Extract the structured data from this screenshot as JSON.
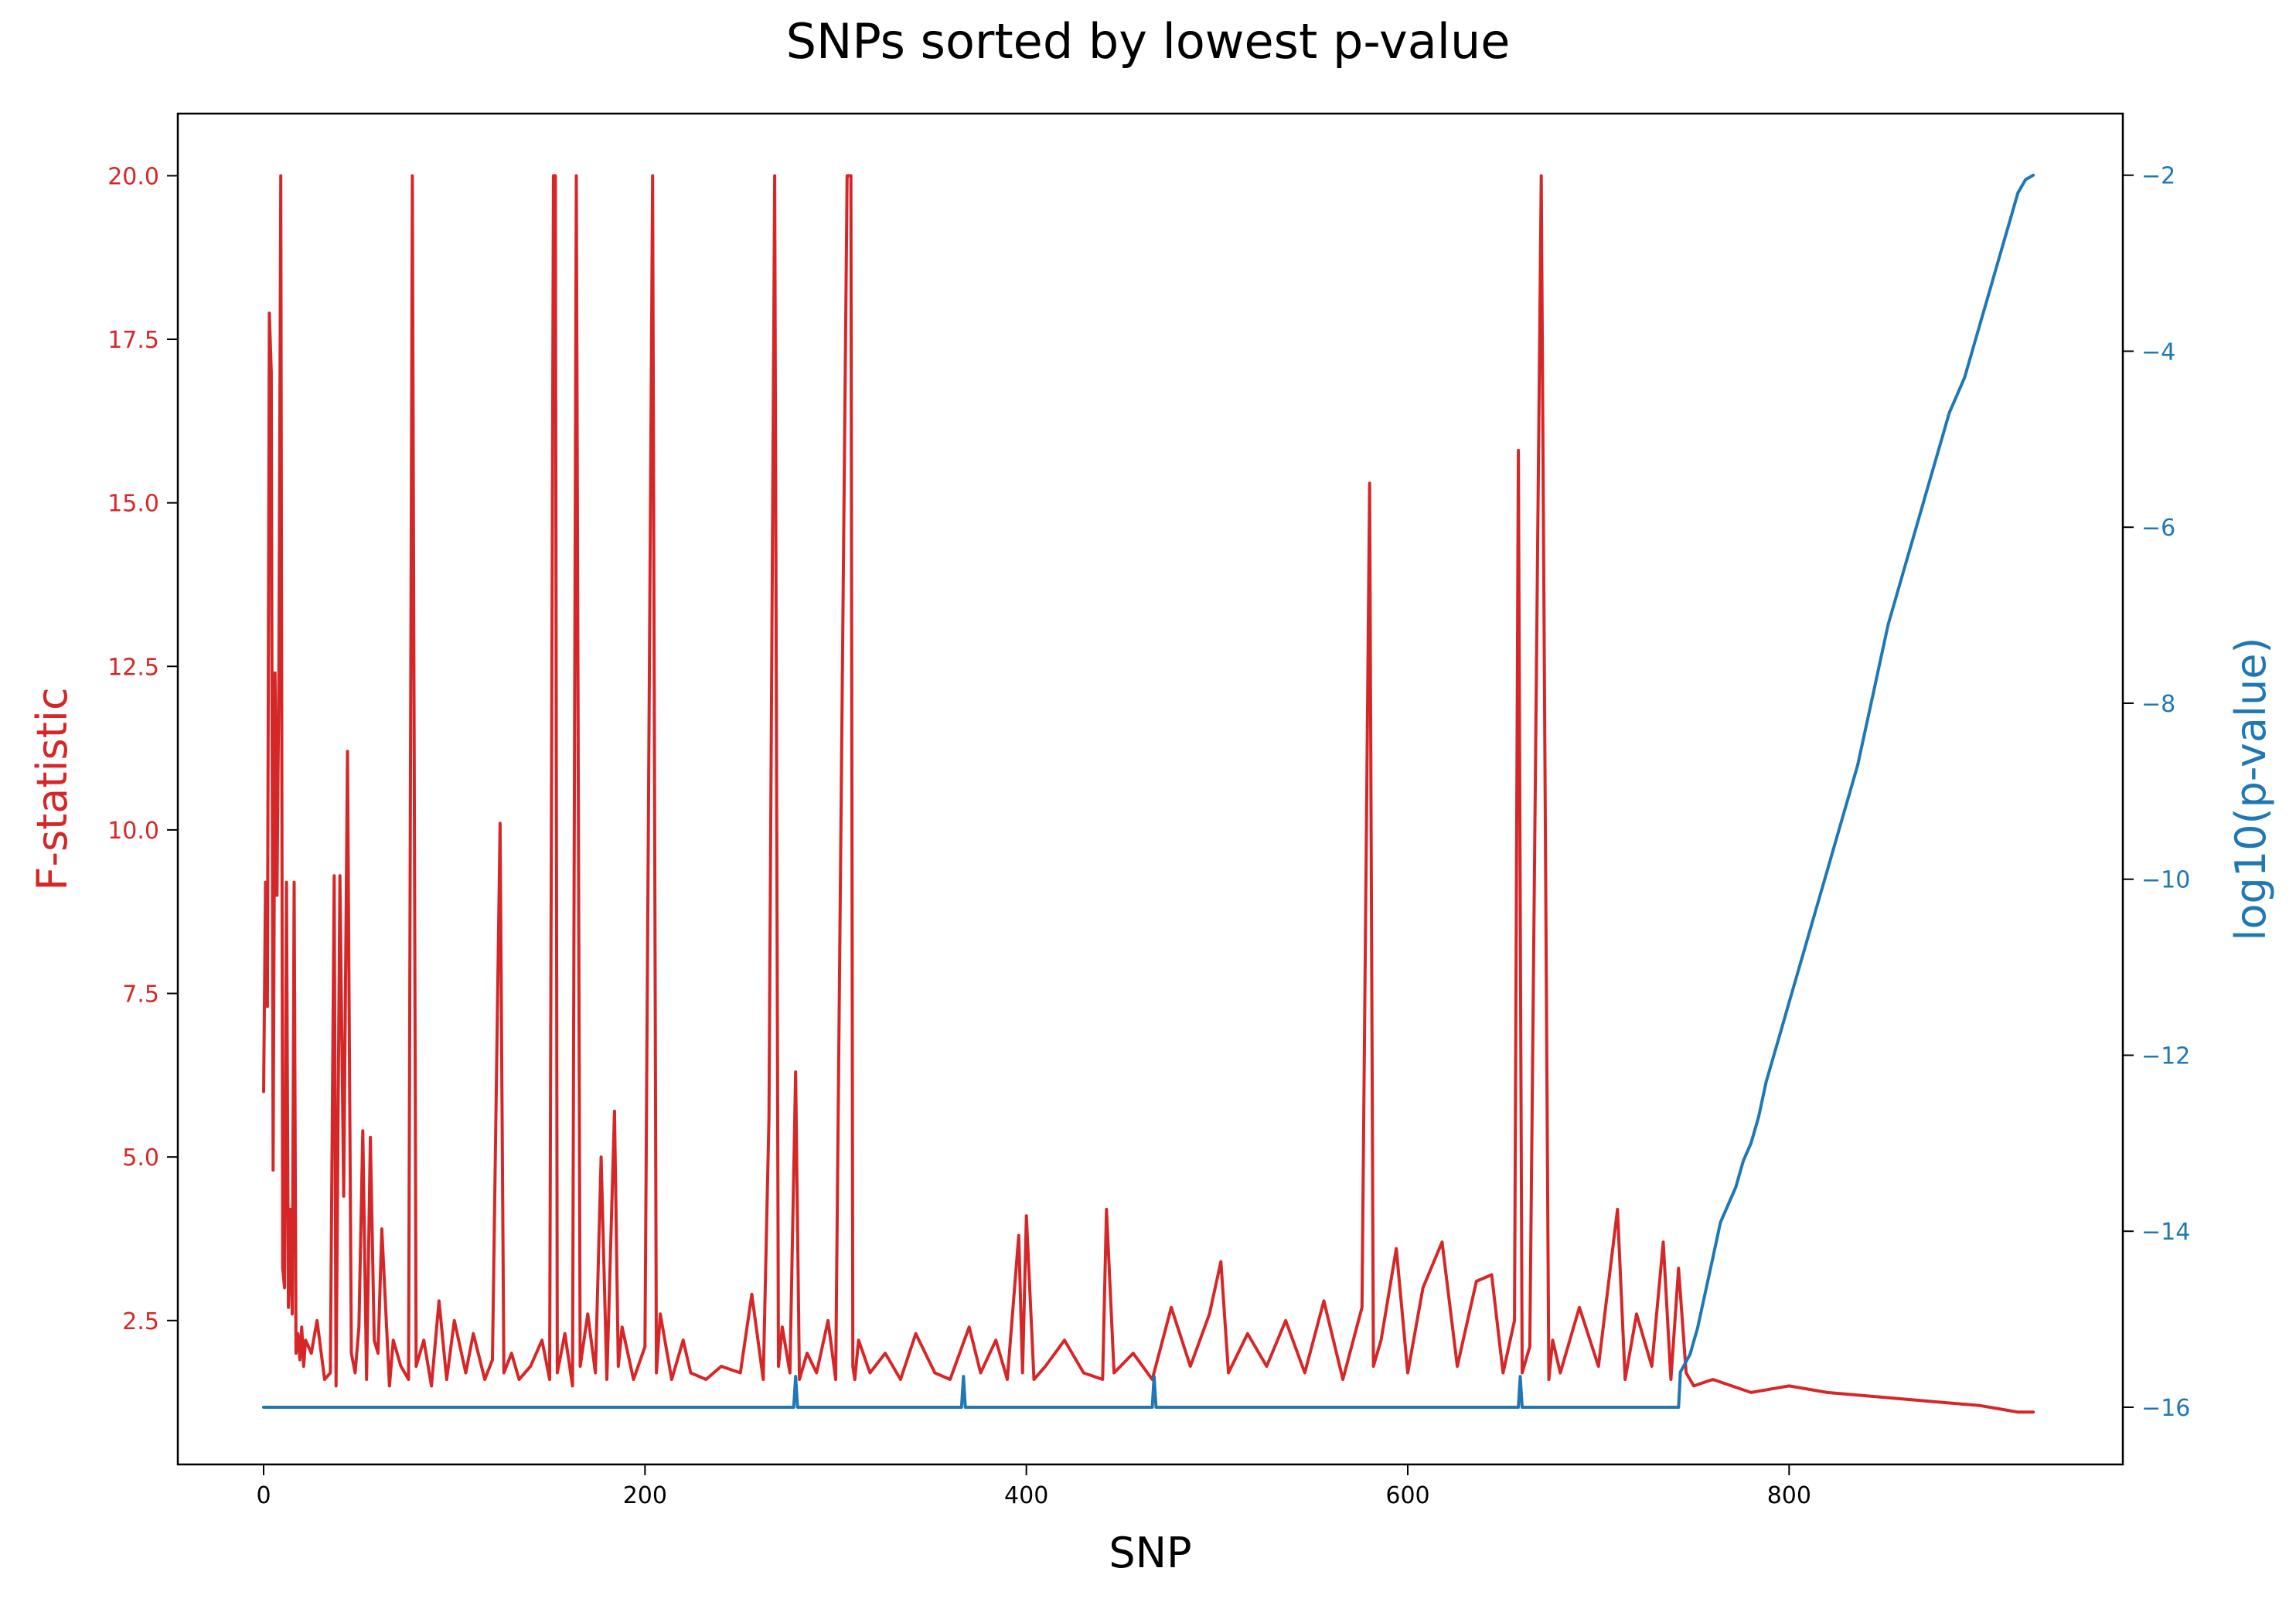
{
  "chart_data": {
    "type": "line",
    "title": "SNPs sorted by lowest p-value",
    "xlabel": "SNP",
    "ylabel_left": "F-statistic",
    "ylabel_right": "log10(p-value)",
    "xlim": [
      -45,
      975
    ],
    "ylim_left": [
      0.3,
      20.95
    ],
    "ylim_right": [
      -16.65,
      -1.3
    ],
    "xticks": [
      0,
      200,
      400,
      600,
      800
    ],
    "yticks_left": [
      2.5,
      5.0,
      7.5,
      10.0,
      12.5,
      15.0,
      17.5,
      20.0
    ],
    "yticks_right": [
      -16,
      -14,
      -12,
      -10,
      -8,
      -6,
      -4,
      -2
    ],
    "ytick_labels_right": [
      "−16",
      "−14",
      "−12",
      "−10",
      "−8",
      "−6",
      "−4",
      "−2"
    ],
    "grid": false,
    "colors": {
      "left": "#d62728",
      "right": "#1f77b4",
      "axis": "#000000"
    },
    "series": [
      {
        "axis": "left",
        "color": "#d62728",
        "x": [
          0,
          1,
          2,
          3,
          4,
          5,
          6,
          7,
          8,
          9,
          10,
          11,
          12,
          13,
          14,
          15,
          16,
          17,
          18,
          19,
          20,
          21,
          22,
          25,
          28,
          32,
          35,
          37,
          38,
          40,
          42,
          44,
          46,
          48,
          50,
          52,
          54,
          56,
          58,
          60,
          62,
          66,
          68,
          72,
          76,
          78,
          80,
          84,
          88,
          92,
          96,
          100,
          106,
          110,
          116,
          120,
          124,
          126,
          130,
          134,
          140,
          146,
          150,
          152,
          153,
          154,
          158,
          162,
          164,
          166,
          170,
          174,
          177,
          180,
          184,
          186,
          188,
          194,
          200,
          204,
          206,
          208,
          214,
          220,
          224,
          232,
          240,
          250,
          256,
          262,
          265,
          268,
          270,
          272,
          276,
          279,
          281,
          285,
          290,
          296,
          300,
          306,
          308,
          309,
          310,
          312,
          318,
          326,
          334,
          342,
          352,
          360,
          370,
          376,
          384,
          390,
          396,
          398,
          400,
          404,
          410,
          420,
          430,
          440,
          442,
          446,
          456,
          466,
          476,
          486,
          496,
          502,
          506,
          516,
          526,
          536,
          546,
          556,
          566,
          576,
          580,
          582,
          586,
          594,
          600,
          608,
          618,
          626,
          636,
          644,
          650,
          656,
          658,
          660,
          664,
          670,
          674,
          676,
          680,
          690,
          700,
          710,
          714,
          720,
          728,
          734,
          738,
          742,
          746,
          750,
          760,
          780,
          800,
          820,
          840,
          860,
          880,
          900,
          910,
          920,
          928
        ],
        "y": [
          6.0,
          9.2,
          7.3,
          17.9,
          17.0,
          4.8,
          12.4,
          9.0,
          12.3,
          20.0,
          3.3,
          3.0,
          9.2,
          2.7,
          4.2,
          2.6,
          9.2,
          2.0,
          2.3,
          1.9,
          2.4,
          1.8,
          2.2,
          2.0,
          2.5,
          1.6,
          1.7,
          9.3,
          1.5,
          9.3,
          4.4,
          11.2,
          2.0,
          1.7,
          2.4,
          5.4,
          1.6,
          5.3,
          2.2,
          2.0,
          3.9,
          1.5,
          2.2,
          1.8,
          1.6,
          20.0,
          1.8,
          2.2,
          1.5,
          2.8,
          1.6,
          2.5,
          1.7,
          2.3,
          1.6,
          1.9,
          10.1,
          1.7,
          2.0,
          1.6,
          1.8,
          2.2,
          1.6,
          20.0,
          20.0,
          1.7,
          2.3,
          1.5,
          20.0,
          1.8,
          2.6,
          1.7,
          5.0,
          1.6,
          5.7,
          1.8,
          2.4,
          1.6,
          2.1,
          20.0,
          1.7,
          2.6,
          1.6,
          2.2,
          1.7,
          1.6,
          1.8,
          1.7,
          2.9,
          1.6,
          5.6,
          20.0,
          1.8,
          2.4,
          1.7,
          6.3,
          1.6,
          2.0,
          1.7,
          2.5,
          1.6,
          20.0,
          20.0,
          1.8,
          1.6,
          2.2,
          1.7,
          2.0,
          1.6,
          2.3,
          1.7,
          1.6,
          2.4,
          1.7,
          2.2,
          1.6,
          3.8,
          1.7,
          4.1,
          1.6,
          1.8,
          2.2,
          1.7,
          1.6,
          4.2,
          1.7,
          2.0,
          1.6,
          2.7,
          1.8,
          2.6,
          3.4,
          1.7,
          2.3,
          1.8,
          2.5,
          1.7,
          2.8,
          1.6,
          2.7,
          15.3,
          1.8,
          2.2,
          3.6,
          1.7,
          3.0,
          3.7,
          1.8,
          3.1,
          3.2,
          1.7,
          2.5,
          15.8,
          1.7,
          2.1,
          20.0,
          1.6,
          2.2,
          1.7,
          2.7,
          1.8,
          4.2,
          1.6,
          2.6,
          1.8,
          3.7,
          1.6,
          3.3,
          1.7,
          1.5,
          1.6,
          1.4,
          1.5,
          1.4,
          1.35,
          1.3,
          1.25,
          1.2,
          1.15,
          1.1,
          1.1
        ]
      },
      {
        "axis": "right",
        "color": "#1f77b4",
        "x": [
          0,
          278,
          279,
          280,
          281,
          366,
          367,
          368,
          369,
          466,
          467,
          468,
          469,
          658,
          659,
          660,
          661,
          742,
          743,
          748,
          752,
          756,
          760,
          764,
          768,
          772,
          776,
          780,
          784,
          788,
          792,
          796,
          800,
          804,
          808,
          812,
          816,
          820,
          824,
          828,
          832,
          836,
          840,
          844,
          848,
          852,
          856,
          860,
          864,
          868,
          872,
          876,
          880,
          884,
          888,
          892,
          896,
          900,
          904,
          908,
          912,
          916,
          920,
          924,
          928
        ],
        "y": [
          -16.0,
          -16.0,
          -15.65,
          -16.0,
          -16.0,
          -16.0,
          -15.65,
          -16.0,
          -16.0,
          -16.0,
          -15.65,
          -16.0,
          -16.0,
          -16.0,
          -15.65,
          -16.0,
          -16.0,
          -16.0,
          -15.6,
          -15.4,
          -15.1,
          -14.7,
          -14.3,
          -13.9,
          -13.7,
          -13.5,
          -13.2,
          -13.0,
          -12.7,
          -12.3,
          -12.0,
          -11.7,
          -11.4,
          -11.1,
          -10.8,
          -10.5,
          -10.2,
          -9.9,
          -9.6,
          -9.3,
          -9.0,
          -8.7,
          -8.3,
          -7.9,
          -7.5,
          -7.1,
          -6.8,
          -6.5,
          -6.2,
          -5.9,
          -5.6,
          -5.3,
          -5.0,
          -4.7,
          -4.5,
          -4.3,
          -4.0,
          -3.7,
          -3.4,
          -3.1,
          -2.8,
          -2.5,
          -2.2,
          -2.05,
          -2.0
        ]
      }
    ]
  }
}
